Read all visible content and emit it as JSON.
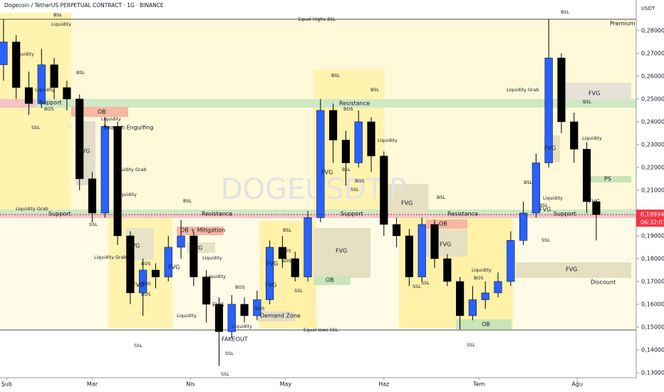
{
  "chart_data": {
    "type": "candlestick",
    "title": "Dogecoin / TetherUS PERPETUAL CONTRACT · 1G · BINANCE",
    "currency": "USDT",
    "watermark": "DOGEUSDT.P",
    "x": [
      0,
      4,
      8,
      12,
      16,
      20,
      24,
      28,
      32,
      36,
      40,
      44,
      48,
      52,
      56,
      60,
      64,
      68,
      72,
      76,
      80,
      84,
      88,
      92,
      96,
      100,
      104,
      108,
      112,
      116,
      120,
      124,
      128,
      132,
      136,
      140,
      144,
      148,
      152,
      156,
      160,
      164,
      168,
      172,
      176,
      180,
      184,
      187
    ],
    "open": [
      0.265,
      0.275,
      0.255,
      0.248,
      0.265,
      0.255,
      0.25,
      0.215,
      0.2,
      0.238,
      0.19,
      0.165,
      0.175,
      0.172,
      0.185,
      0.19,
      0.172,
      0.16,
      0.148,
      0.16,
      0.155,
      0.162,
      0.185,
      0.18,
      0.172,
      0.198,
      0.245,
      0.232,
      0.222,
      0.24,
      0.225,
      0.195,
      0.19,
      0.172,
      0.195,
      0.18,
      0.17,
      0.155,
      0.162,
      0.165,
      0.17,
      0.188,
      0.2,
      0.222,
      0.268,
      0.24,
      0.228,
      0.205
    ],
    "high": [
      0.285,
      0.278,
      0.262,
      0.272,
      0.268,
      0.258,
      0.252,
      0.218,
      0.242,
      0.24,
      0.192,
      0.18,
      0.178,
      0.19,
      0.197,
      0.192,
      0.175,
      0.163,
      0.164,
      0.163,
      0.166,
      0.188,
      0.19,
      0.183,
      0.201,
      0.25,
      0.248,
      0.236,
      0.245,
      0.242,
      0.227,
      0.198,
      0.193,
      0.198,
      0.197,
      0.182,
      0.172,
      0.168,
      0.17,
      0.174,
      0.192,
      0.205,
      0.226,
      0.285,
      0.27,
      0.244,
      0.231,
      0.2045
    ],
    "low": [
      0.258,
      0.25,
      0.243,
      0.246,
      0.25,
      0.245,
      0.21,
      0.196,
      0.198,
      0.186,
      0.16,
      0.155,
      0.167,
      0.17,
      0.18,
      0.168,
      0.152,
      0.133,
      0.145,
      0.152,
      0.153,
      0.16,
      0.176,
      0.17,
      0.17,
      0.196,
      0.222,
      0.212,
      0.22,
      0.218,
      0.19,
      0.185,
      0.168,
      0.17,
      0.176,
      0.168,
      0.149,
      0.153,
      0.158,
      0.163,
      0.168,
      0.186,
      0.198,
      0.22,
      0.235,
      0.222,
      0.2,
      0.188
    ],
    "close": [
      0.275,
      0.255,
      0.248,
      0.265,
      0.255,
      0.25,
      0.215,
      0.2,
      0.238,
      0.19,
      0.165,
      0.175,
      0.172,
      0.185,
      0.19,
      0.172,
      0.16,
      0.148,
      0.16,
      0.155,
      0.162,
      0.185,
      0.18,
      0.172,
      0.198,
      0.245,
      0.232,
      0.222,
      0.24,
      0.225,
      0.195,
      0.19,
      0.172,
      0.195,
      0.18,
      0.17,
      0.155,
      0.162,
      0.165,
      0.17,
      0.188,
      0.2,
      0.222,
      0.268,
      0.24,
      0.228,
      0.205,
      0.1993
    ],
    "up_color": "#2962ff",
    "down_color": "#000000",
    "xlim": [
      -1.1,
      199.6
    ],
    "xticks": [
      {
        "value": 1,
        "label": "Şub"
      },
      {
        "value": 28,
        "label": "Mar"
      },
      {
        "value": 59,
        "label": "Nis"
      },
      {
        "value": 89,
        "label": "May"
      },
      {
        "value": 120,
        "label": "Haz"
      },
      {
        "value": 150,
        "label": "Tem"
      },
      {
        "value": 181,
        "label": "Ağu"
      }
    ],
    "ylim": [
      0.1278,
      0.2934
    ],
    "yticks": [
      {
        "value": 0.13,
        "label": "0,13000"
      },
      {
        "value": 0.14,
        "label": "0,14000"
      },
      {
        "value": 0.15,
        "label": "0,15000"
      },
      {
        "value": 0.16,
        "label": "0,16000"
      },
      {
        "value": 0.17,
        "label": "0,17000"
      },
      {
        "value": 0.18,
        "label": "0,18000"
      },
      {
        "value": 0.19,
        "label": "0,19000"
      },
      {
        "value": 0.2,
        "label": "0,20000"
      },
      {
        "value": 0.21,
        "label": "0,21000"
      },
      {
        "value": 0.22,
        "label": "0,22000"
      },
      {
        "value": 0.23,
        "label": "0,23000"
      },
      {
        "value": 0.24,
        "label": "0,24000"
      },
      {
        "value": 0.25,
        "label": "0,25000"
      },
      {
        "value": 0.26,
        "label": "0,26000"
      },
      {
        "value": 0.27,
        "label": "0,27000"
      },
      {
        "value": 0.28,
        "label": "0,28000"
      }
    ],
    "last_price": {
      "value": 0.19934,
      "label": "0,19934"
    },
    "countdown": "06:32:07",
    "annotations": [
      "Equal Highs BSL",
      "Premium",
      "BSL",
      "Liquidity",
      "Liquidity",
      "BSL",
      "Liquidity",
      "Support",
      "BOS",
      "SSL",
      "OB",
      "Liquidity",
      "Bearish Engulfing",
      "FVG",
      "Liquidity Grab",
      "Liquidity",
      "Liquidity Grab",
      "BSL",
      "Support",
      "Resistance",
      "Support",
      "Resistance",
      "Support",
      "SSL",
      "Liquidity Grab",
      "FVG",
      "OB + Mitigation",
      "FVG",
      "Liquidity",
      "Liquidity",
      "FVG",
      "BOS",
      "BOS",
      "BOS",
      "FVG",
      "Liquidity",
      "FVG",
      "BOS",
      "BOS",
      "Liquidity",
      "SSL",
      "SSL",
      "FAKEOUT",
      "Demand Zone",
      "Equal lows SSL",
      "SSL",
      "BSL",
      "BOS",
      "BOS",
      "FVG",
      "FVG",
      "SSL",
      "OB",
      "FVG",
      "BSL",
      "BSL",
      "Resistance",
      "BOS",
      "Liquidity",
      "FVG",
      "BSL",
      "BOS",
      "SSL",
      "FVG",
      "BSL",
      "OB",
      "FVG",
      "SSL",
      "SSL",
      "Liquidity",
      "BOS",
      "OB",
      "SSL",
      "BSL",
      "Liquidity Grab",
      "FVG",
      "BSL",
      "Liquidity",
      "FVG",
      "PS",
      "BSL",
      "Liquidity",
      "FVG",
      "BSL",
      "FVG",
      "SSL",
      "FVG",
      "Discount"
    ]
  }
}
